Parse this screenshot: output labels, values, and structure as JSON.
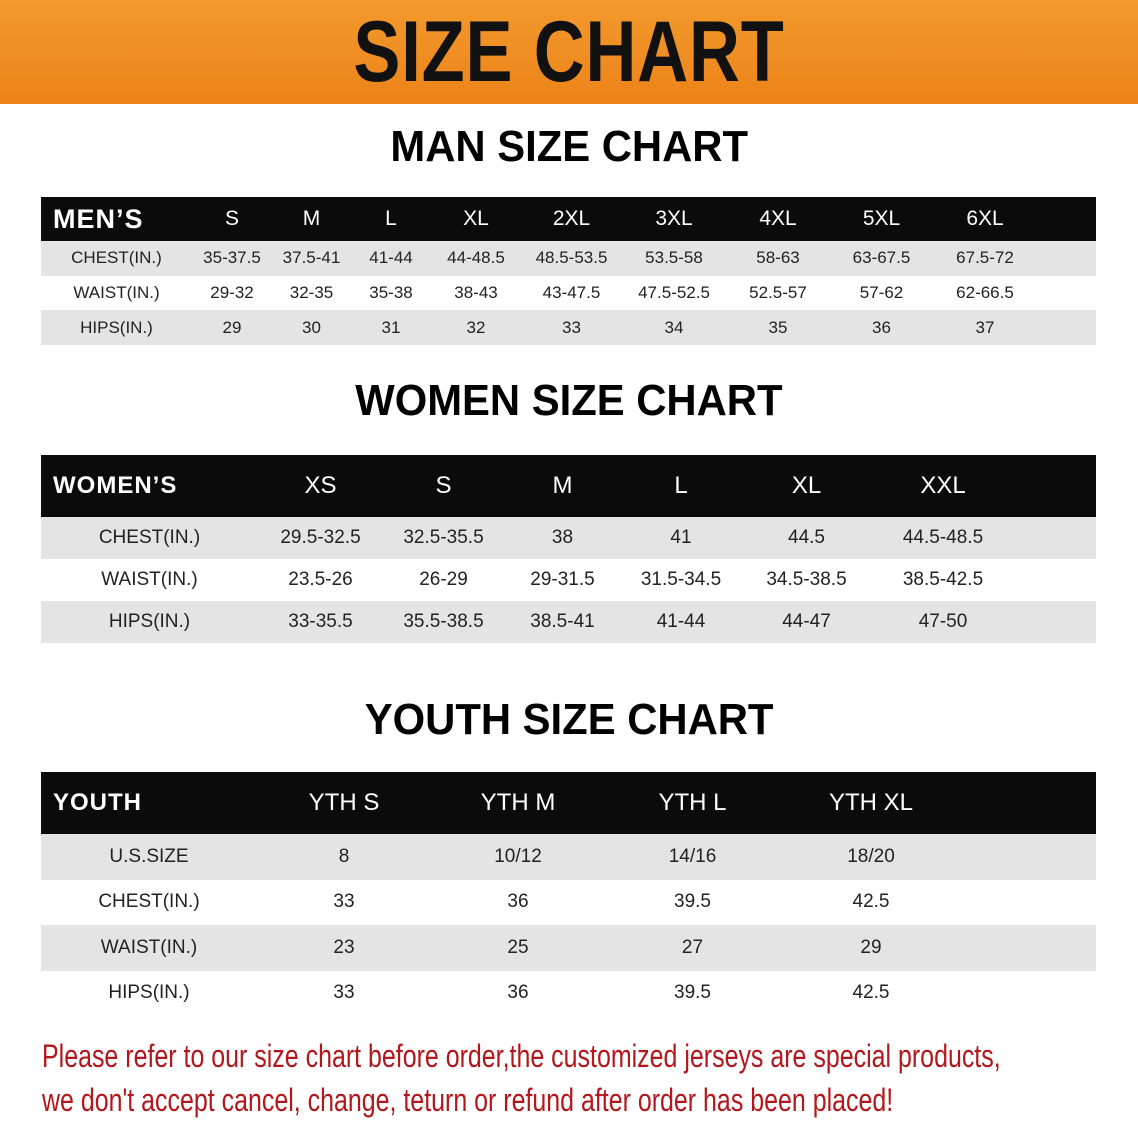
{
  "title": "SIZE CHART",
  "men": {
    "title": "MAN SIZE CHART",
    "header": "MEN’S",
    "sizes": [
      "S",
      "M",
      "L",
      "XL",
      "2XL",
      "3XL",
      "4XL",
      "5XL",
      "6XL"
    ],
    "rows": [
      {
        "label": "CHEST(IN.)",
        "values": [
          "35-37.5",
          "37.5-41",
          "41-44",
          "44-48.5",
          "48.5-53.5",
          "53.5-58",
          "58-63",
          "63-67.5",
          "67.5-72"
        ]
      },
      {
        "label": "WAIST(IN.)",
        "values": [
          "29-32",
          "32-35",
          "35-38",
          "38-43",
          "43-47.5",
          "47.5-52.5",
          "52.5-57",
          "57-62",
          "62-66.5"
        ]
      },
      {
        "label": "HIPS(IN.)",
        "values": [
          "29",
          "30",
          "31",
          "32",
          "33",
          "34",
          "35",
          "36",
          "37"
        ]
      }
    ]
  },
  "women": {
    "title": "WOMEN SIZE CHART",
    "header": "WOMEN’S",
    "sizes": [
      "XS",
      "S",
      "M",
      "L",
      "XL",
      "XXL"
    ],
    "rows": [
      {
        "label": "CHEST(IN.)",
        "values": [
          "29.5-32.5",
          "32.5-35.5",
          "38",
          "41",
          "44.5",
          "44.5-48.5"
        ]
      },
      {
        "label": "WAIST(IN.)",
        "values": [
          "23.5-26",
          "26-29",
          "29-31.5",
          "31.5-34.5",
          "34.5-38.5",
          "38.5-42.5"
        ]
      },
      {
        "label": "HIPS(IN.)",
        "values": [
          "33-35.5",
          "35.5-38.5",
          "38.5-41",
          "41-44",
          "44-47",
          "47-50"
        ]
      }
    ]
  },
  "youth": {
    "title": "YOUTH SIZE CHART",
    "header": "YOUTH",
    "sizes": [
      "YTH S",
      "YTH M",
      "YTH L",
      "YTH XL"
    ],
    "rows": [
      {
        "label": "U.S.SIZE",
        "values": [
          "8",
          "10/12",
          "14/16",
          "18/20"
        ]
      },
      {
        "label": "CHEST(IN.)",
        "values": [
          "33",
          "36",
          "39.5",
          "42.5"
        ]
      },
      {
        "label": "WAIST(IN.)",
        "values": [
          "23",
          "25",
          "27",
          "29"
        ]
      },
      {
        "label": "HIPS(IN.)",
        "values": [
          "33",
          "36",
          "39.5",
          "42.5"
        ]
      }
    ]
  },
  "notice": [
    "Please refer to our size chart before order,the customized jerseys are special products,",
    "we don't accept cancel, change, teturn or refund after order has been placed!"
  ],
  "colors": {
    "banner": "#ec8318",
    "header_row": "#0b0b0b",
    "stripe": "#e4e4e4",
    "notice": "#b3171c"
  }
}
